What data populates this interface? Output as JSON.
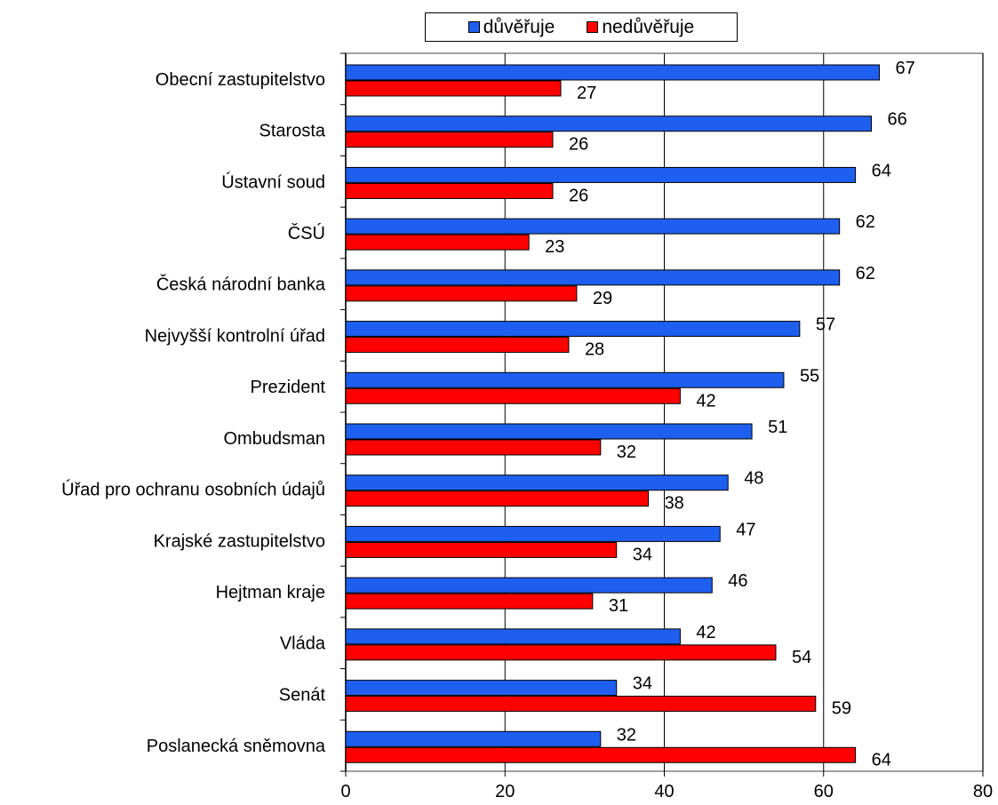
{
  "chart_data": {
    "type": "bar",
    "orientation": "horizontal",
    "categories": [
      "Obecní zastupitelstvo",
      "Starosta",
      "Ústavní soud",
      "ČSÚ",
      "Česká národní banka",
      "Nejvyšší kontrolní úřad",
      "Prezident",
      "Ombudsman",
      "Úřad pro ochranu osobních údajů",
      "Krajské zastupitelstvo",
      "Hejtman kraje",
      "Vláda",
      "Senát",
      "Poslanecká sněmovna"
    ],
    "series": [
      {
        "name": "důvěřuje",
        "color": "#1f5ff0",
        "values": [
          67,
          66,
          64,
          62,
          62,
          57,
          55,
          51,
          48,
          47,
          46,
          42,
          34,
          32
        ]
      },
      {
        "name": "nedůvěřuje",
        "color": "#ff0000",
        "values": [
          27,
          26,
          26,
          23,
          29,
          28,
          42,
          32,
          38,
          34,
          31,
          54,
          59,
          64
        ]
      }
    ],
    "xlim": [
      0,
      80
    ],
    "xticks": [
      0,
      20,
      40,
      60,
      80
    ],
    "grid": "vertical",
    "legend_position": "top-center",
    "data_labels": true
  }
}
